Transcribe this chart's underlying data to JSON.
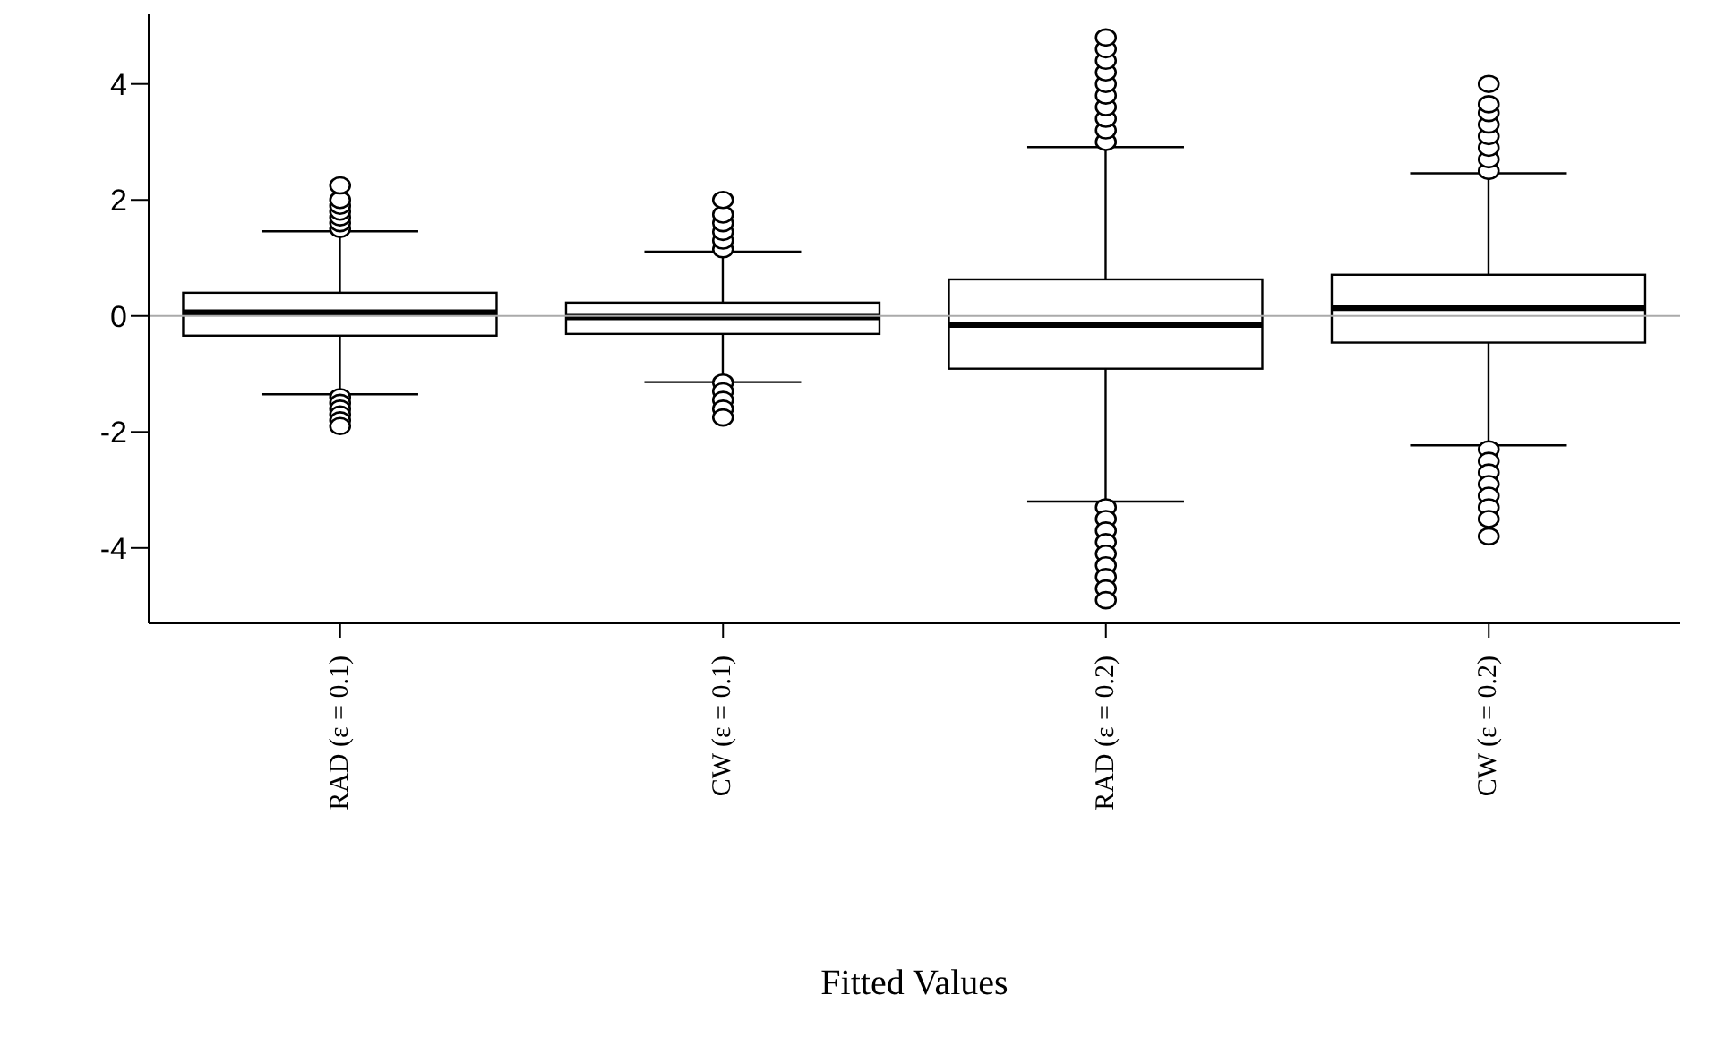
{
  "chart_data": {
    "type": "box",
    "categories": [
      "RAD (ε = 0.1)",
      "CW (ε = 0.1)",
      "RAD (ε = 0.2)",
      "CW (ε = 0.2)"
    ],
    "boxes": [
      {
        "low": -1.35,
        "q1": -0.34,
        "median": 0.06,
        "q3": 0.4,
        "high": 1.46,
        "outliers": [
          1.5,
          1.6,
          1.7,
          1.8,
          1.9,
          2.0,
          2.25,
          -1.4,
          -1.5,
          -1.6,
          -1.7,
          -1.8,
          -1.9
        ]
      },
      {
        "low": -1.14,
        "q1": -0.31,
        "median": -0.02,
        "q3": 0.23,
        "high": 1.11,
        "outliers": [
          1.15,
          1.3,
          1.45,
          1.6,
          1.75,
          2.0,
          -1.15,
          -1.3,
          -1.45,
          -1.6,
          -1.75
        ]
      },
      {
        "low": -3.2,
        "q1": -0.91,
        "median": -0.15,
        "q3": 0.63,
        "high": 2.91,
        "outliers": [
          3.0,
          3.2,
          3.4,
          3.6,
          3.8,
          4.0,
          4.2,
          4.4,
          4.6,
          4.8,
          -3.3,
          -3.5,
          -3.7,
          -3.9,
          -4.1,
          -4.3,
          -4.5,
          -4.7,
          -4.9
        ]
      },
      {
        "low": -2.23,
        "q1": -0.46,
        "median": 0.14,
        "q3": 0.71,
        "high": 2.46,
        "outliers": [
          2.5,
          2.7,
          2.9,
          3.1,
          3.3,
          3.5,
          3.65,
          4.0,
          -2.3,
          -2.5,
          -2.7,
          -2.9,
          -3.1,
          -3.3,
          -3.5,
          -3.8
        ]
      }
    ],
    "ylim": [
      -5.3,
      5.2
    ],
    "yticks": [
      -4,
      -2,
      0,
      2,
      4
    ],
    "xlabel": "Fitted Values",
    "ref_lines": [
      {
        "axis": "y",
        "value": 0,
        "color": "#aaaaaa"
      }
    ],
    "marker": "circle"
  }
}
